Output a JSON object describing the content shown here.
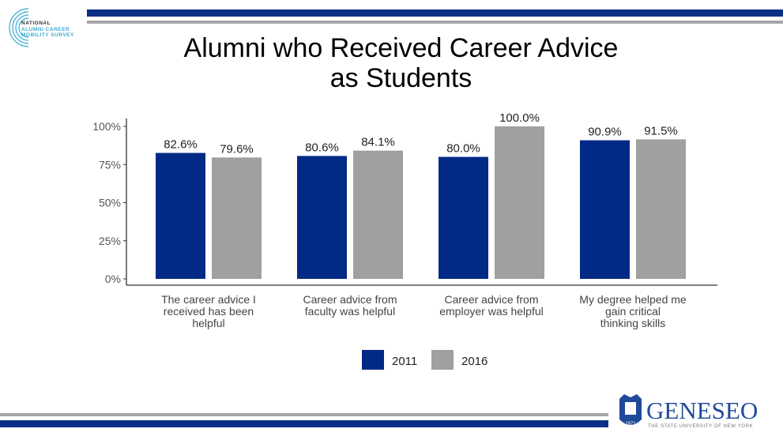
{
  "logo_left": {
    "lines": [
      "NATIONAL",
      "ALUMNI CAREER",
      "MOBILITY SURVEY"
    ]
  },
  "logo_right": {
    "name": "GENESEO",
    "subtitle": "THE STATE UNIVERSITY OF NEW YORK",
    "year": "1871"
  },
  "colors": {
    "blue": "#002a86",
    "gray": "#a0a0a0",
    "rule_blue": "#0b2f86",
    "rule_gray": "#a6a6a6"
  },
  "chart_data": {
    "type": "bar",
    "title": "Alumni who Received Career Advice as Students",
    "title_lines": [
      "Alumni who Received Career Advice",
      "as Students"
    ],
    "categories": [
      [
        "The career advice I",
        "received has been",
        "helpful"
      ],
      [
        "Career advice from",
        "faculty was helpful"
      ],
      [
        "Career advice from",
        "employer was helpful"
      ],
      [
        "My degree helped me",
        "gain critical",
        "thinking skills"
      ]
    ],
    "series": [
      {
        "name": "2011",
        "color": "#002a86",
        "values": [
          82.6,
          80.6,
          80.0,
          90.9
        ],
        "labels": [
          "82.6%",
          "80.6%",
          "80.0%",
          "90.9%"
        ]
      },
      {
        "name": "2016",
        "color": "#a0a0a0",
        "values": [
          79.6,
          84.1,
          100.0,
          91.5
        ],
        "labels": [
          "79.6%",
          "84.1%",
          "100.0%",
          "91.5%"
        ]
      }
    ],
    "ylim": [
      0,
      100
    ],
    "yticks": [
      0,
      25,
      50,
      75,
      100
    ],
    "ytick_labels": [
      "0%",
      "25%",
      "50%",
      "75%",
      "100%"
    ],
    "grid": false,
    "legend": "bottom"
  }
}
